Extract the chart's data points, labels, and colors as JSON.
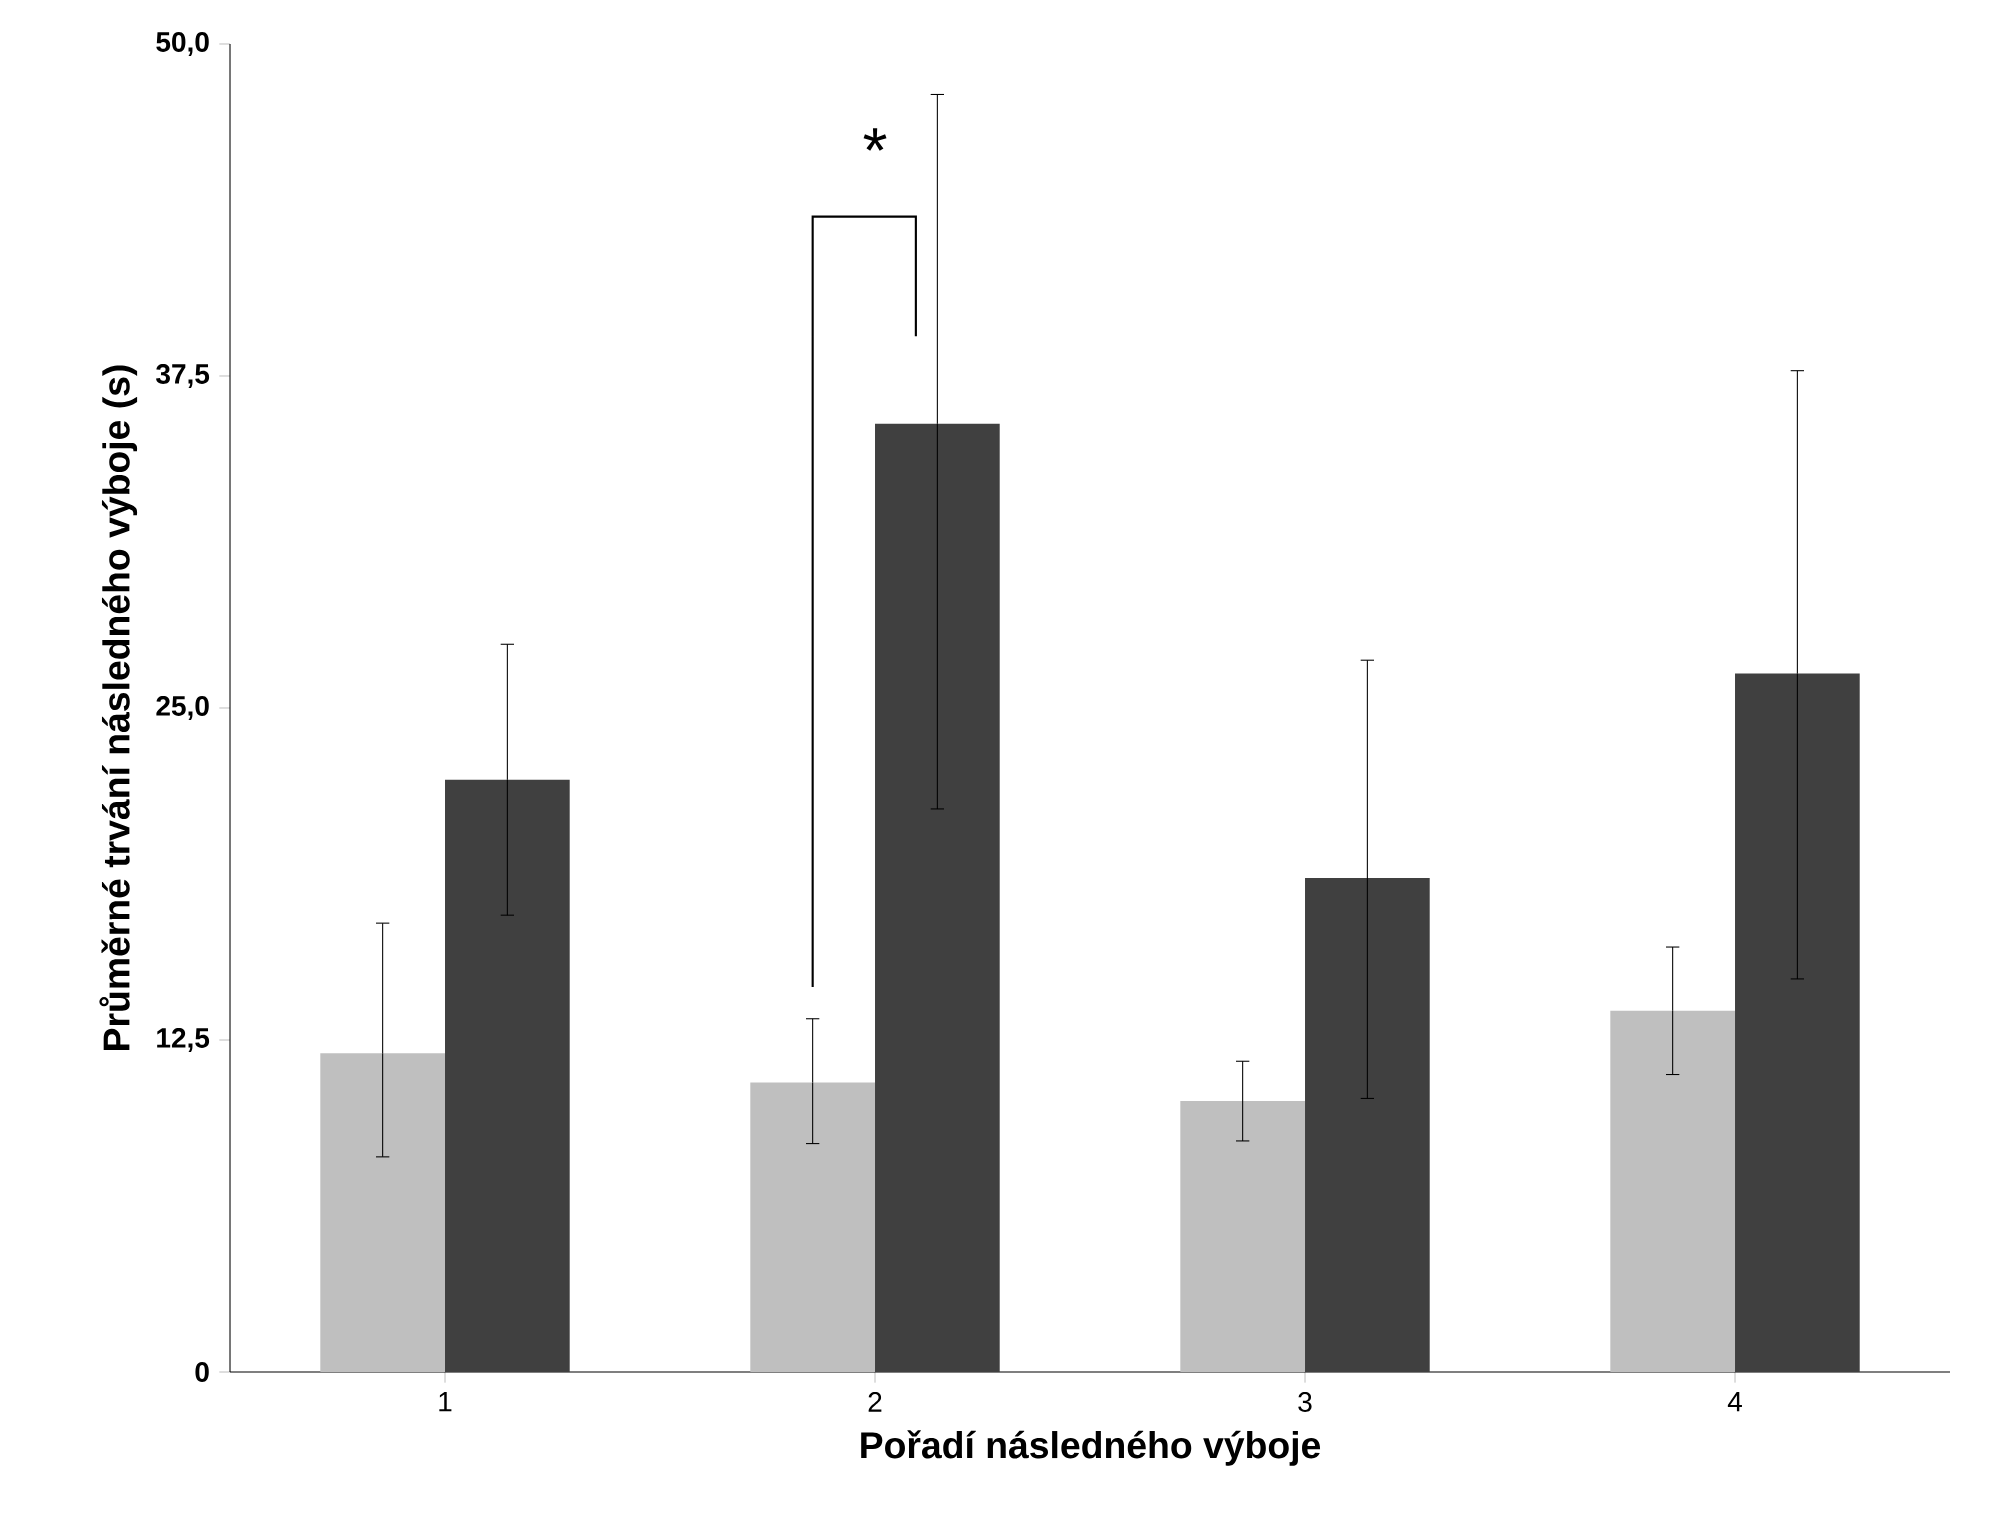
{
  "chart_data": {
    "type": "bar",
    "xlabel": "Pořadí následného výboje",
    "ylabel": "Průměrné trvání následného výboje (s)",
    "categories": [
      "1",
      "2",
      "3",
      "4"
    ],
    "series": [
      {
        "color": "#bfbfbf",
        "values": [
          12.0,
          10.9,
          10.2,
          13.6
        ],
        "errors": [
          [
            8.1,
            16.9
          ],
          [
            8.6,
            13.3
          ],
          [
            8.7,
            11.7
          ],
          [
            11.2,
            16.0
          ]
        ]
      },
      {
        "color": "#404040",
        "values": [
          22.3,
          35.7,
          18.6,
          26.3
        ],
        "errors": [
          [
            17.2,
            27.4
          ],
          [
            21.2,
            48.1
          ],
          [
            10.3,
            26.8
          ],
          [
            14.8,
            37.7
          ]
        ]
      }
    ],
    "ylim": [
      0,
      50
    ],
    "yticks": [
      0,
      {
        "value": 12.5,
        "label": "12,5"
      },
      {
        "value": 25,
        "label": "25,0"
      },
      {
        "value": 37.5,
        "label": "37,5"
      },
      {
        "value": 50,
        "label": "50,0"
      }
    ],
    "grid": false,
    "annotations": [
      "*"
    ]
  }
}
